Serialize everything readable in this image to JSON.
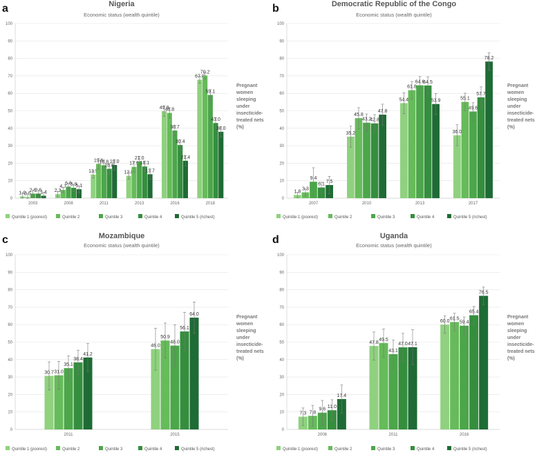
{
  "colors": [
    "#8fd17f",
    "#66bb5a",
    "#4ca64a",
    "#358e3e",
    "#1f6b35"
  ],
  "legend": [
    "Quintile 1 (poorest)",
    "Quintile 2",
    "Quintile 3",
    "Quintile 4",
    "Quintile 5 (richest)"
  ],
  "side_label": [
    "Pregnant",
    "women",
    "sleeping",
    "under",
    "insecticide-",
    "treated nets",
    "(%)"
  ],
  "chart_data": [
    {
      "panel": "a",
      "type": "bar",
      "title": "Nigeria",
      "subtitle": "Economic status (wealth quintile)",
      "ylim": [
        0,
        100
      ],
      "yticks": [
        0,
        10,
        20,
        30,
        40,
        50,
        60,
        70,
        80,
        90,
        100
      ],
      "categories": [
        "2003",
        "2008",
        "2011",
        "2013",
        "2016",
        "2018"
      ],
      "series": [
        {
          "name": "Quintile 1 (poorest)",
          "values": [
            1.0,
            2.3,
            13.5,
            12.8,
            49.8,
            67.8
          ],
          "err": [
            2,
            1.5,
            2,
            2,
            3,
            2
          ]
        },
        {
          "name": "Quintile 2",
          "values": [
            0.5,
            4.7,
            19.6,
            17.9,
            48.8,
            70.2
          ],
          "err": [
            2,
            1.5,
            3,
            3,
            3,
            2
          ]
        },
        {
          "name": "Quintile 3",
          "values": [
            2.6,
            6.6,
            18.8,
            21.0,
            38.7,
            59.1
          ],
          "err": [
            2,
            2,
            3,
            3,
            3,
            3
          ]
        },
        {
          "name": "Quintile 4",
          "values": [
            2.6,
            5.9,
            16.8,
            18.1,
            30.4,
            43.0
          ],
          "err": [
            2,
            2,
            3,
            3,
            3,
            3
          ]
        },
        {
          "name": "Quintile 5 (richest)",
          "values": [
            1.4,
            5.1,
            19.0,
            13.7,
            21.4,
            38.0
          ],
          "err": [
            2,
            2,
            3,
            3,
            3,
            3
          ]
        }
      ],
      "labels": [
        [
          "1.0",
          "2.3",
          "13.5",
          "12.8",
          "49.8",
          "67.8"
        ],
        [
          "0.5",
          "4.7",
          "19.6",
          "17.9",
          "48.8",
          "70.2"
        ],
        [
          "2.6",
          "6.6",
          "18.8",
          "21.0",
          "38.7",
          "59.1"
        ],
        [
          "2.6",
          "5.9",
          "16.8",
          "18.1",
          "30.4",
          "43.0"
        ],
        [
          "1.4",
          "5.1",
          "19.0",
          "13.7",
          "21.4",
          "38.0"
        ]
      ]
    },
    {
      "panel": "b",
      "type": "bar",
      "title": "Democratic Republic of the Congo",
      "subtitle": "Economic status (wealth quintile)",
      "ylim": [
        0,
        100
      ],
      "yticks": [
        0,
        10,
        20,
        30,
        40,
        50,
        60,
        70,
        80,
        90,
        100
      ],
      "categories": [
        "2007",
        "2010",
        "2013",
        "2017"
      ],
      "series": [
        {
          "name": "Quintile 1 (poorest)",
          "values": [
            1.8,
            35.2,
            54.4,
            36.0
          ],
          "err": [
            1.5,
            6,
            6,
            6
          ]
        },
        {
          "name": "Quintile 2",
          "values": [
            3.3,
            45.8,
            61.8,
            55.1
          ],
          "err": [
            2,
            6,
            5,
            5
          ]
        },
        {
          "name": "Quintile 3",
          "values": [
            9.4,
            43.2,
            64.6,
            49.6
          ],
          "err": [
            8,
            5,
            5,
            5
          ]
        },
        {
          "name": "Quintile 4",
          "values": [
            6.1,
            42.8,
            64.5,
            57.7
          ],
          "err": [
            3,
            5,
            5,
            6
          ]
        },
        {
          "name": "Quintile 5 (richest)",
          "values": [
            7.5,
            47.8,
            53.9,
            78.2
          ],
          "err": [
            5,
            6,
            6,
            5
          ]
        }
      ],
      "labels": [
        [
          "1.8",
          "35.2",
          "54.4",
          "36.0"
        ],
        [
          "3.3",
          "45.8",
          "61.8",
          "55.1"
        ],
        [
          "9.4",
          "43.2",
          "64.6",
          "49.6"
        ],
        [
          "6.1",
          "42.8",
          "64.5",
          "57.7"
        ],
        [
          "7.5",
          "47.8",
          "53.9",
          "78.2"
        ]
      ]
    },
    {
      "panel": "c",
      "type": "bar",
      "title": "Mozambique",
      "subtitle": "Economic status (wealth quintile)",
      "ylim": [
        0,
        100
      ],
      "yticks": [
        0,
        10,
        20,
        30,
        40,
        50,
        60,
        70,
        80,
        90,
        100
      ],
      "categories": [
        "2011",
        "2015"
      ],
      "series": [
        {
          "name": "Quintile 1 (poorest)",
          "values": [
            30.7,
            46.0
          ],
          "err": [
            8,
            12
          ]
        },
        {
          "name": "Quintile 2",
          "values": [
            31.0,
            50.9
          ],
          "err": [
            8,
            10
          ]
        },
        {
          "name": "Quintile 3",
          "values": [
            35.1,
            48.0
          ],
          "err": [
            7,
            12
          ]
        },
        {
          "name": "Quintile 4",
          "values": [
            38.4,
            56.1
          ],
          "err": [
            7,
            11
          ]
        },
        {
          "name": "Quintile 5 (richest)",
          "values": [
            41.2,
            64.0
          ],
          "err": [
            8,
            9
          ]
        }
      ],
      "labels": [
        [
          "30.7",
          "46.0"
        ],
        [
          "31.0",
          "50.9"
        ],
        [
          "35.1",
          "48.0"
        ],
        [
          "38.4",
          "56.1"
        ],
        [
          "41.2",
          "64.0"
        ]
      ]
    },
    {
      "panel": "d",
      "type": "bar",
      "title": "Uganda",
      "subtitle": "Economic status (wealth quintile)",
      "ylim": [
        0,
        100
      ],
      "yticks": [
        0,
        10,
        20,
        30,
        40,
        50,
        60,
        70,
        80,
        90,
        100
      ],
      "categories": [
        "2006",
        "2011",
        "2016"
      ],
      "series": [
        {
          "name": "Quintile 1 (poorest)",
          "values": [
            7.3,
            47.8,
            60.0
          ],
          "err": [
            5,
            8,
            5
          ]
        },
        {
          "name": "Quintile 2",
          "values": [
            7.8,
            49.5,
            61.5
          ],
          "err": [
            6,
            8,
            5
          ]
        },
        {
          "name": "Quintile 3",
          "values": [
            9.6,
            43.1,
            59.4
          ],
          "err": [
            7,
            8,
            5
          ]
        },
        {
          "name": "Quintile 4",
          "values": [
            11.0,
            47.0,
            65.4
          ],
          "err": [
            6,
            8,
            5
          ]
        },
        {
          "name": "Quintile 5 (richest)",
          "values": [
            17.4,
            47.1,
            76.5
          ],
          "err": [
            8,
            10,
            5
          ]
        }
      ],
      "labels": [
        [
          "7.3",
          "47.8",
          "60.0"
        ],
        [
          "7.8",
          "49.5",
          "61.5"
        ],
        [
          "9.6",
          "43.1",
          "59.4"
        ],
        [
          "11.0",
          "47.0",
          "65.4"
        ],
        [
          "17.4",
          "47.1",
          "76.5"
        ]
      ]
    }
  ]
}
